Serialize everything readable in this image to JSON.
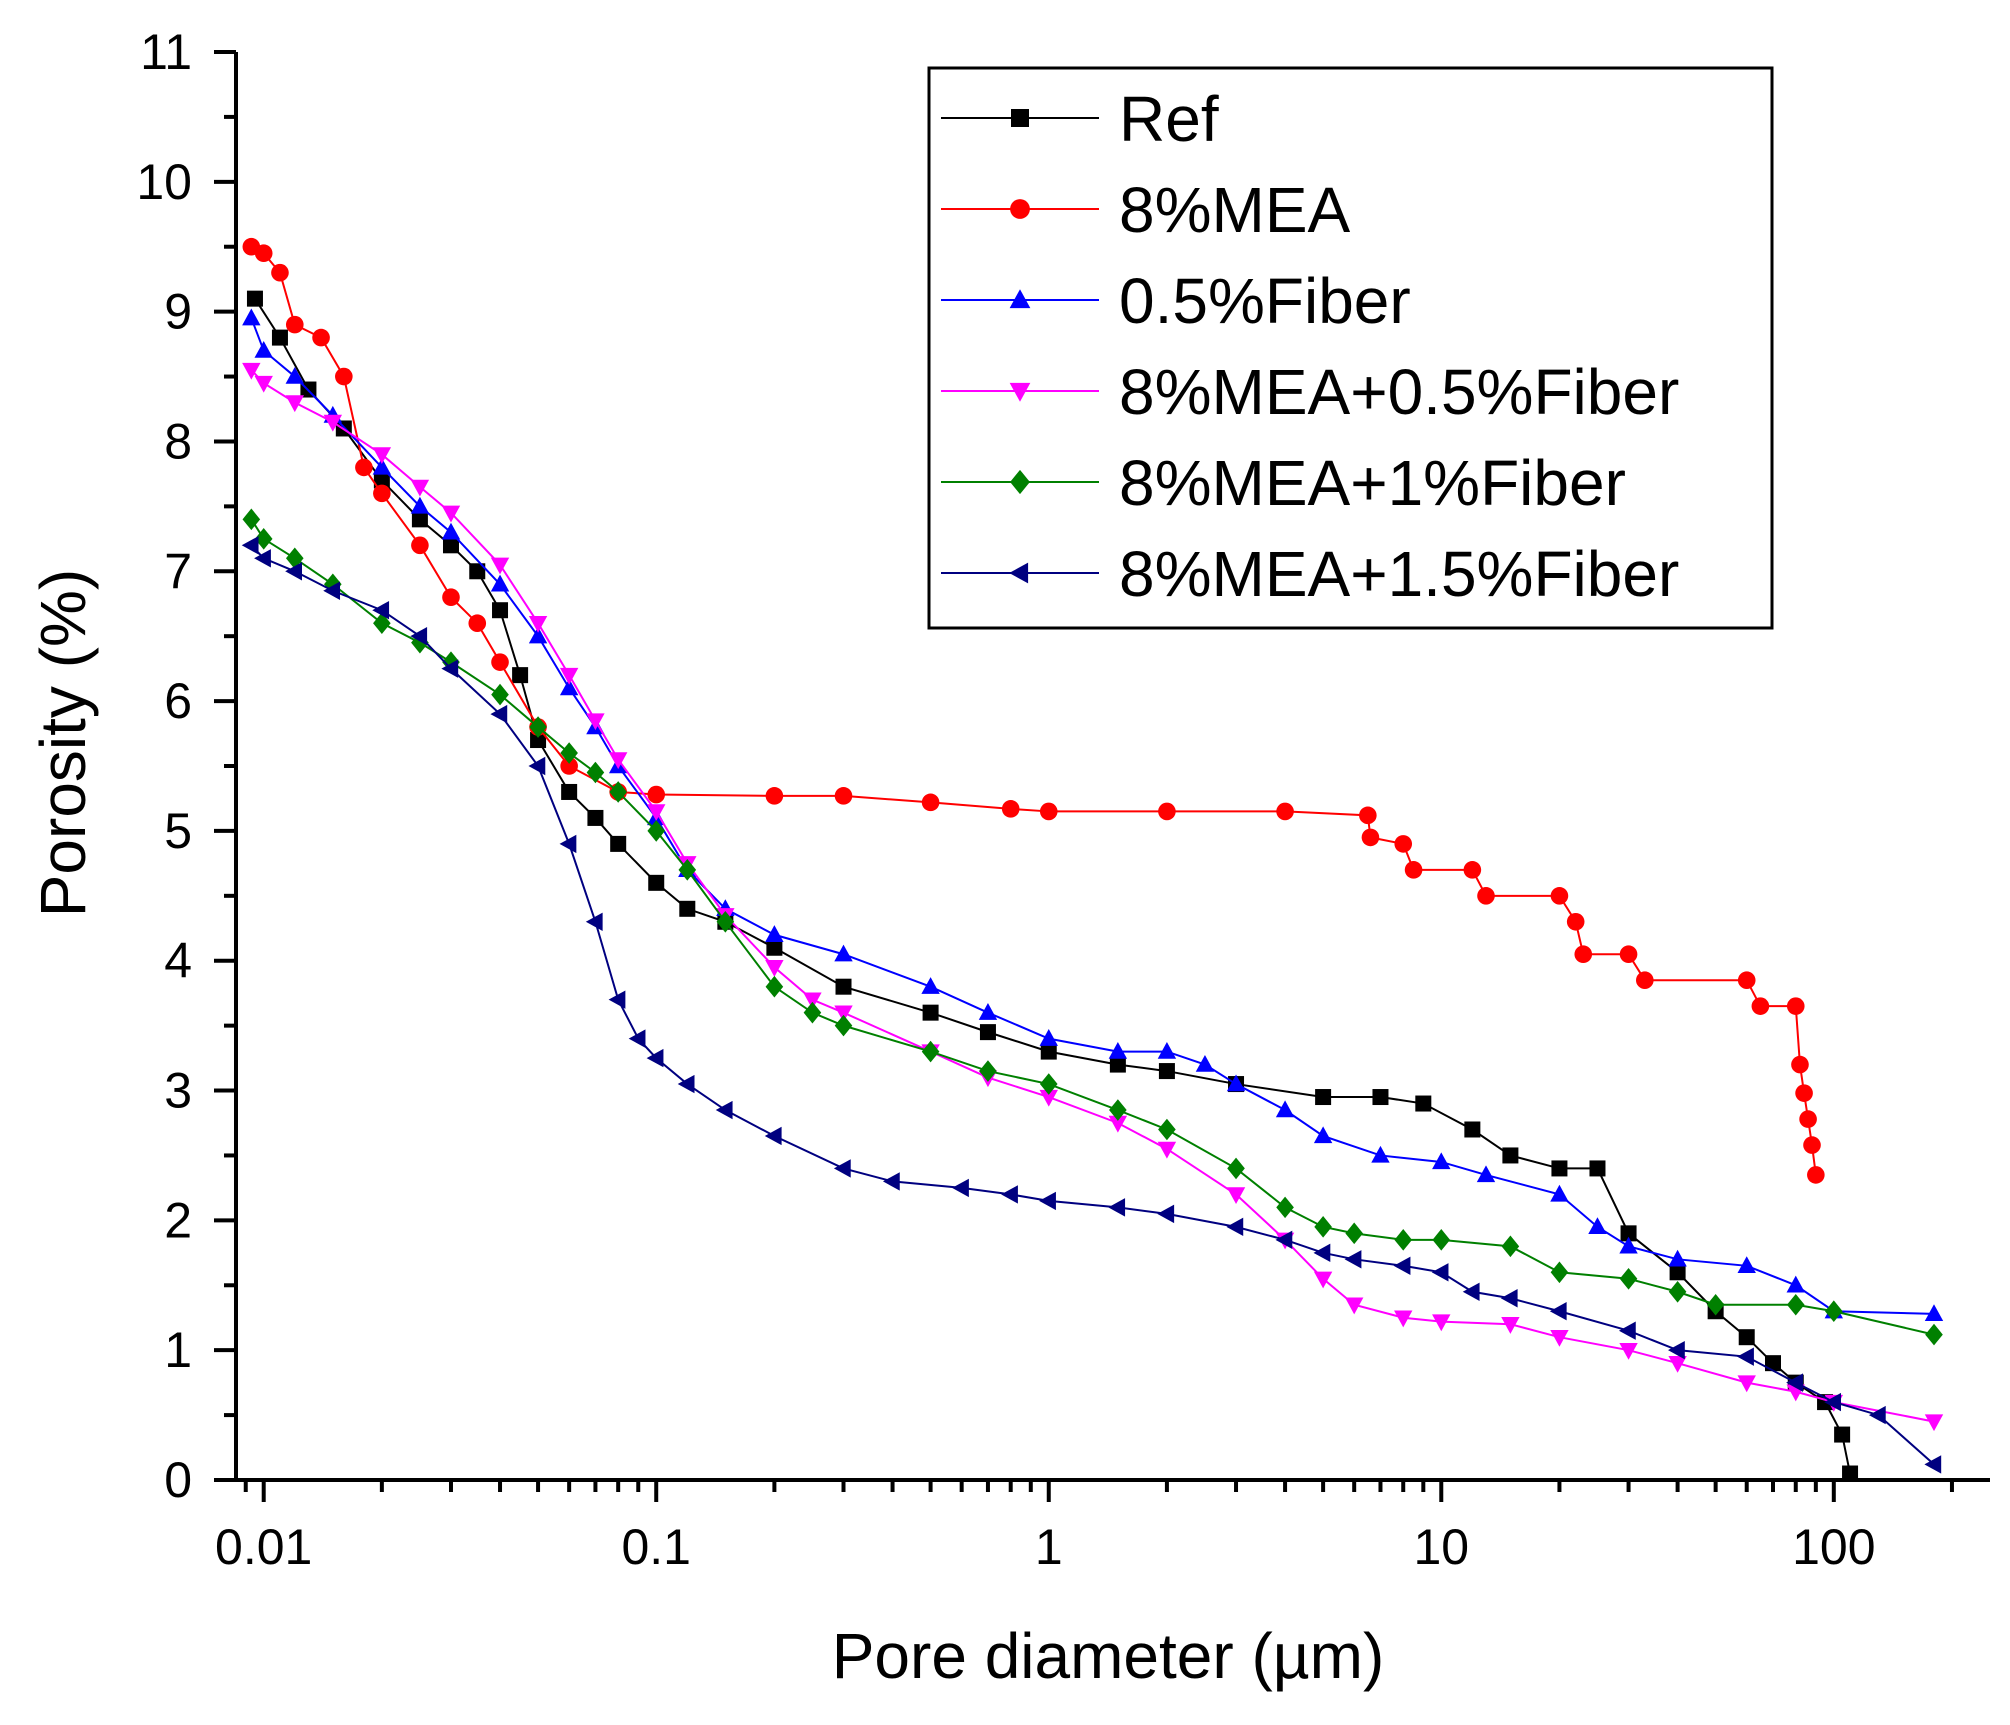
{
  "chart_data": {
    "type": "scatter",
    "title": "",
    "xlabel": "Pore diameter (µm)",
    "ylabel": "Porosity (%)",
    "xscale": "log",
    "xlim": [
      0.0085,
      250
    ],
    "ylim": [
      0,
      11
    ],
    "x_ticks": [
      0.01,
      0.1,
      1,
      10,
      100
    ],
    "x_tick_labels": [
      "0.01",
      "0.1",
      "1",
      "10",
      "100"
    ],
    "y_ticks": [
      0,
      1,
      2,
      3,
      4,
      5,
      6,
      7,
      8,
      9,
      10,
      11
    ],
    "y_tick_labels": [
      "0",
      "1",
      "2",
      "3",
      "4",
      "5",
      "6",
      "7",
      "8",
      "9",
      "10",
      "11"
    ],
    "legend_position": "top-right",
    "series": [
      {
        "name": "Ref",
        "color": "#000000",
        "marker": "square",
        "points": [
          [
            0.0095,
            9.1
          ],
          [
            0.011,
            8.8
          ],
          [
            0.013,
            8.4
          ],
          [
            0.016,
            8.1
          ],
          [
            0.02,
            7.7
          ],
          [
            0.025,
            7.4
          ],
          [
            0.03,
            7.2
          ],
          [
            0.035,
            7.0
          ],
          [
            0.04,
            6.7
          ],
          [
            0.045,
            6.2
          ],
          [
            0.05,
            5.7
          ],
          [
            0.06,
            5.3
          ],
          [
            0.07,
            5.1
          ],
          [
            0.08,
            4.9
          ],
          [
            0.1,
            4.6
          ],
          [
            0.12,
            4.4
          ],
          [
            0.15,
            4.3
          ],
          [
            0.2,
            4.1
          ],
          [
            0.3,
            3.8
          ],
          [
            0.5,
            3.6
          ],
          [
            0.7,
            3.45
          ],
          [
            1,
            3.3
          ],
          [
            1.5,
            3.2
          ],
          [
            2,
            3.15
          ],
          [
            3,
            3.05
          ],
          [
            5,
            2.95
          ],
          [
            7,
            2.95
          ],
          [
            9,
            2.9
          ],
          [
            12,
            2.7
          ],
          [
            15,
            2.5
          ],
          [
            20,
            2.4
          ],
          [
            25,
            2.4
          ],
          [
            30,
            1.9
          ],
          [
            40,
            1.6
          ],
          [
            50,
            1.3
          ],
          [
            60,
            1.1
          ],
          [
            70,
            0.9
          ],
          [
            80,
            0.75
          ],
          [
            95,
            0.6
          ],
          [
            105,
            0.35
          ],
          [
            110,
            0.05
          ]
        ]
      },
      {
        "name": "8%MEA",
        "color": "#ff0000",
        "marker": "circle",
        "points": [
          [
            0.0093,
            9.5
          ],
          [
            0.01,
            9.45
          ],
          [
            0.011,
            9.3
          ],
          [
            0.012,
            8.9
          ],
          [
            0.014,
            8.8
          ],
          [
            0.016,
            8.5
          ],
          [
            0.018,
            7.8
          ],
          [
            0.02,
            7.6
          ],
          [
            0.025,
            7.2
          ],
          [
            0.03,
            6.8
          ],
          [
            0.035,
            6.6
          ],
          [
            0.04,
            6.3
          ],
          [
            0.05,
            5.8
          ],
          [
            0.06,
            5.5
          ],
          [
            0.08,
            5.3
          ],
          [
            0.1,
            5.28
          ],
          [
            0.2,
            5.27
          ],
          [
            0.3,
            5.27
          ],
          [
            0.5,
            5.22
          ],
          [
            0.8,
            5.17
          ],
          [
            1,
            5.15
          ],
          [
            2,
            5.15
          ],
          [
            4,
            5.15
          ],
          [
            6.5,
            5.12
          ],
          [
            6.6,
            4.95
          ],
          [
            8,
            4.9
          ],
          [
            8.5,
            4.7
          ],
          [
            12,
            4.7
          ],
          [
            13,
            4.5
          ],
          [
            20,
            4.5
          ],
          [
            22,
            4.3
          ],
          [
            23,
            4.05
          ],
          [
            30,
            4.05
          ],
          [
            33,
            3.85
          ],
          [
            60,
            3.85
          ],
          [
            65,
            3.65
          ],
          [
            80,
            3.65
          ],
          [
            82,
            3.2
          ],
          [
            84,
            2.98
          ],
          [
            86,
            2.78
          ],
          [
            88,
            2.58
          ],
          [
            90,
            2.35
          ]
        ]
      },
      {
        "name": "0.5%Fiber",
        "color": "#0000ff",
        "marker": "triangle-up",
        "points": [
          [
            0.0093,
            8.95
          ],
          [
            0.01,
            8.7
          ],
          [
            0.012,
            8.5
          ],
          [
            0.015,
            8.2
          ],
          [
            0.02,
            7.8
          ],
          [
            0.025,
            7.5
          ],
          [
            0.03,
            7.3
          ],
          [
            0.04,
            6.9
          ],
          [
            0.05,
            6.5
          ],
          [
            0.06,
            6.1
          ],
          [
            0.07,
            5.8
          ],
          [
            0.08,
            5.5
          ],
          [
            0.1,
            5.1
          ],
          [
            0.12,
            4.7
          ],
          [
            0.15,
            4.4
          ],
          [
            0.2,
            4.2
          ],
          [
            0.3,
            4.05
          ],
          [
            0.5,
            3.8
          ],
          [
            0.7,
            3.6
          ],
          [
            1,
            3.4
          ],
          [
            1.5,
            3.3
          ],
          [
            2,
            3.3
          ],
          [
            2.5,
            3.2
          ],
          [
            3,
            3.05
          ],
          [
            4,
            2.85
          ],
          [
            5,
            2.65
          ],
          [
            7,
            2.5
          ],
          [
            10,
            2.45
          ],
          [
            13,
            2.35
          ],
          [
            20,
            2.2
          ],
          [
            25,
            1.95
          ],
          [
            30,
            1.8
          ],
          [
            40,
            1.7
          ],
          [
            60,
            1.65
          ],
          [
            80,
            1.5
          ],
          [
            100,
            1.3
          ],
          [
            180,
            1.28
          ]
        ]
      },
      {
        "name": "8%MEA+0.5%Fiber",
        "color": "#ff00ff",
        "marker": "triangle-down",
        "points": [
          [
            0.0093,
            8.55
          ],
          [
            0.01,
            8.45
          ],
          [
            0.012,
            8.3
          ],
          [
            0.015,
            8.15
          ],
          [
            0.02,
            7.9
          ],
          [
            0.025,
            7.65
          ],
          [
            0.03,
            7.45
          ],
          [
            0.04,
            7.05
          ],
          [
            0.05,
            6.6
          ],
          [
            0.06,
            6.2
          ],
          [
            0.07,
            5.85
          ],
          [
            0.08,
            5.55
          ],
          [
            0.1,
            5.15
          ],
          [
            0.12,
            4.75
          ],
          [
            0.15,
            4.35
          ],
          [
            0.2,
            3.95
          ],
          [
            0.25,
            3.7
          ],
          [
            0.3,
            3.6
          ],
          [
            0.5,
            3.3
          ],
          [
            0.7,
            3.1
          ],
          [
            1,
            2.95
          ],
          [
            1.5,
            2.75
          ],
          [
            2,
            2.55
          ],
          [
            3,
            2.2
          ],
          [
            4,
            1.85
          ],
          [
            5,
            1.55
          ],
          [
            6,
            1.35
          ],
          [
            8,
            1.25
          ],
          [
            10,
            1.22
          ],
          [
            15,
            1.2
          ],
          [
            20,
            1.1
          ],
          [
            30,
            1.0
          ],
          [
            40,
            0.9
          ],
          [
            60,
            0.75
          ],
          [
            80,
            0.68
          ],
          [
            100,
            0.6
          ],
          [
            180,
            0.45
          ]
        ]
      },
      {
        "name": "8%MEA+1%Fiber",
        "color": "#008000",
        "marker": "diamond",
        "points": [
          [
            0.0093,
            7.4
          ],
          [
            0.01,
            7.25
          ],
          [
            0.012,
            7.1
          ],
          [
            0.015,
            6.9
          ],
          [
            0.02,
            6.6
          ],
          [
            0.025,
            6.45
          ],
          [
            0.03,
            6.3
          ],
          [
            0.04,
            6.05
          ],
          [
            0.05,
            5.8
          ],
          [
            0.06,
            5.6
          ],
          [
            0.07,
            5.45
          ],
          [
            0.08,
            5.3
          ],
          [
            0.1,
            5.0
          ],
          [
            0.12,
            4.7
          ],
          [
            0.15,
            4.3
          ],
          [
            0.2,
            3.8
          ],
          [
            0.25,
            3.6
          ],
          [
            0.3,
            3.5
          ],
          [
            0.5,
            3.3
          ],
          [
            0.7,
            3.15
          ],
          [
            1,
            3.05
          ],
          [
            1.5,
            2.85
          ],
          [
            2,
            2.7
          ],
          [
            3,
            2.4
          ],
          [
            4,
            2.1
          ],
          [
            5,
            1.95
          ],
          [
            6,
            1.9
          ],
          [
            8,
            1.85
          ],
          [
            10,
            1.85
          ],
          [
            15,
            1.8
          ],
          [
            20,
            1.6
          ],
          [
            30,
            1.55
          ],
          [
            40,
            1.45
          ],
          [
            50,
            1.35
          ],
          [
            80,
            1.35
          ],
          [
            100,
            1.3
          ],
          [
            180,
            1.12
          ]
        ]
      },
      {
        "name": "8%MEA+1.5%Fiber",
        "color": "#000080",
        "marker": "triangle-left",
        "points": [
          [
            0.0093,
            7.2
          ],
          [
            0.01,
            7.1
          ],
          [
            0.012,
            7.0
          ],
          [
            0.015,
            6.85
          ],
          [
            0.02,
            6.7
          ],
          [
            0.025,
            6.5
          ],
          [
            0.03,
            6.25
          ],
          [
            0.04,
            5.9
          ],
          [
            0.05,
            5.5
          ],
          [
            0.06,
            4.9
          ],
          [
            0.07,
            4.3
          ],
          [
            0.08,
            3.7
          ],
          [
            0.09,
            3.4
          ],
          [
            0.1,
            3.25
          ],
          [
            0.12,
            3.05
          ],
          [
            0.15,
            2.85
          ],
          [
            0.2,
            2.65
          ],
          [
            0.3,
            2.4
          ],
          [
            0.4,
            2.3
          ],
          [
            0.6,
            2.25
          ],
          [
            0.8,
            2.2
          ],
          [
            1,
            2.15
          ],
          [
            1.5,
            2.1
          ],
          [
            2,
            2.05
          ],
          [
            3,
            1.95
          ],
          [
            4,
            1.85
          ],
          [
            5,
            1.75
          ],
          [
            6,
            1.7
          ],
          [
            8,
            1.65
          ],
          [
            10,
            1.6
          ],
          [
            12,
            1.45
          ],
          [
            15,
            1.4
          ],
          [
            20,
            1.3
          ],
          [
            30,
            1.15
          ],
          [
            40,
            1.0
          ],
          [
            60,
            0.95
          ],
          [
            80,
            0.75
          ],
          [
            100,
            0.6
          ],
          [
            130,
            0.5
          ],
          [
            180,
            0.12
          ]
        ]
      }
    ]
  }
}
